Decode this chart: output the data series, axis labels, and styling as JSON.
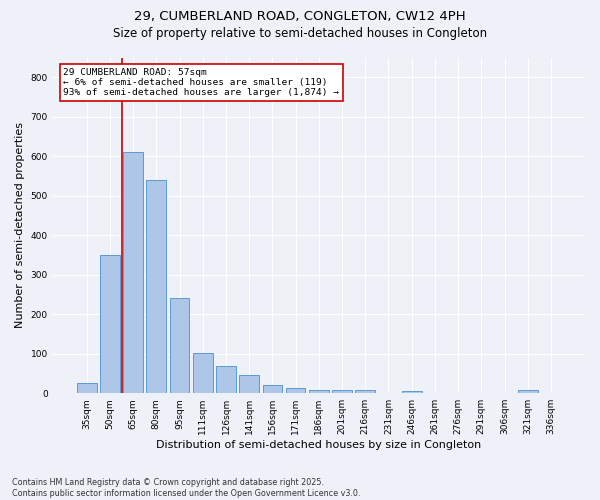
{
  "title": "29, CUMBERLAND ROAD, CONGLETON, CW12 4PH",
  "subtitle": "Size of property relative to semi-detached houses in Congleton",
  "xlabel": "Distribution of semi-detached houses by size in Congleton",
  "ylabel": "Number of semi-detached properties",
  "categories": [
    "35sqm",
    "50sqm",
    "65sqm",
    "80sqm",
    "95sqm",
    "111sqm",
    "126sqm",
    "141sqm",
    "156sqm",
    "171sqm",
    "186sqm",
    "201sqm",
    "216sqm",
    "231sqm",
    "246sqm",
    "261sqm",
    "276sqm",
    "291sqm",
    "306sqm",
    "321sqm",
    "336sqm"
  ],
  "values": [
    27,
    350,
    610,
    540,
    240,
    103,
    68,
    47,
    20,
    13,
    9,
    9,
    7,
    0,
    5,
    0,
    0,
    0,
    0,
    7,
    0
  ],
  "bar_color": "#aec6e8",
  "bar_edge_color": "#5b9bd5",
  "vline_color": "#cc0000",
  "annotation_text": "29 CUMBERLAND ROAD: 57sqm\n← 6% of semi-detached houses are smaller (119)\n93% of semi-detached houses are larger (1,874) →",
  "annotation_box_color": "#ffffff",
  "annotation_box_edge_color": "#cc0000",
  "ylim": [
    0,
    850
  ],
  "yticks": [
    0,
    100,
    200,
    300,
    400,
    500,
    600,
    700,
    800
  ],
  "background_color": "#eef2f8",
  "footer_line1": "Contains HM Land Registry data © Crown copyright and database right 2025.",
  "footer_line2": "Contains public sector information licensed under the Open Government Licence v3.0.",
  "title_fontsize": 9.5,
  "subtitle_fontsize": 8.5,
  "tick_fontsize": 6.5,
  "label_fontsize": 8,
  "footer_fontsize": 5.8,
  "annotation_fontsize": 6.8,
  "vline_x": 1.5
}
